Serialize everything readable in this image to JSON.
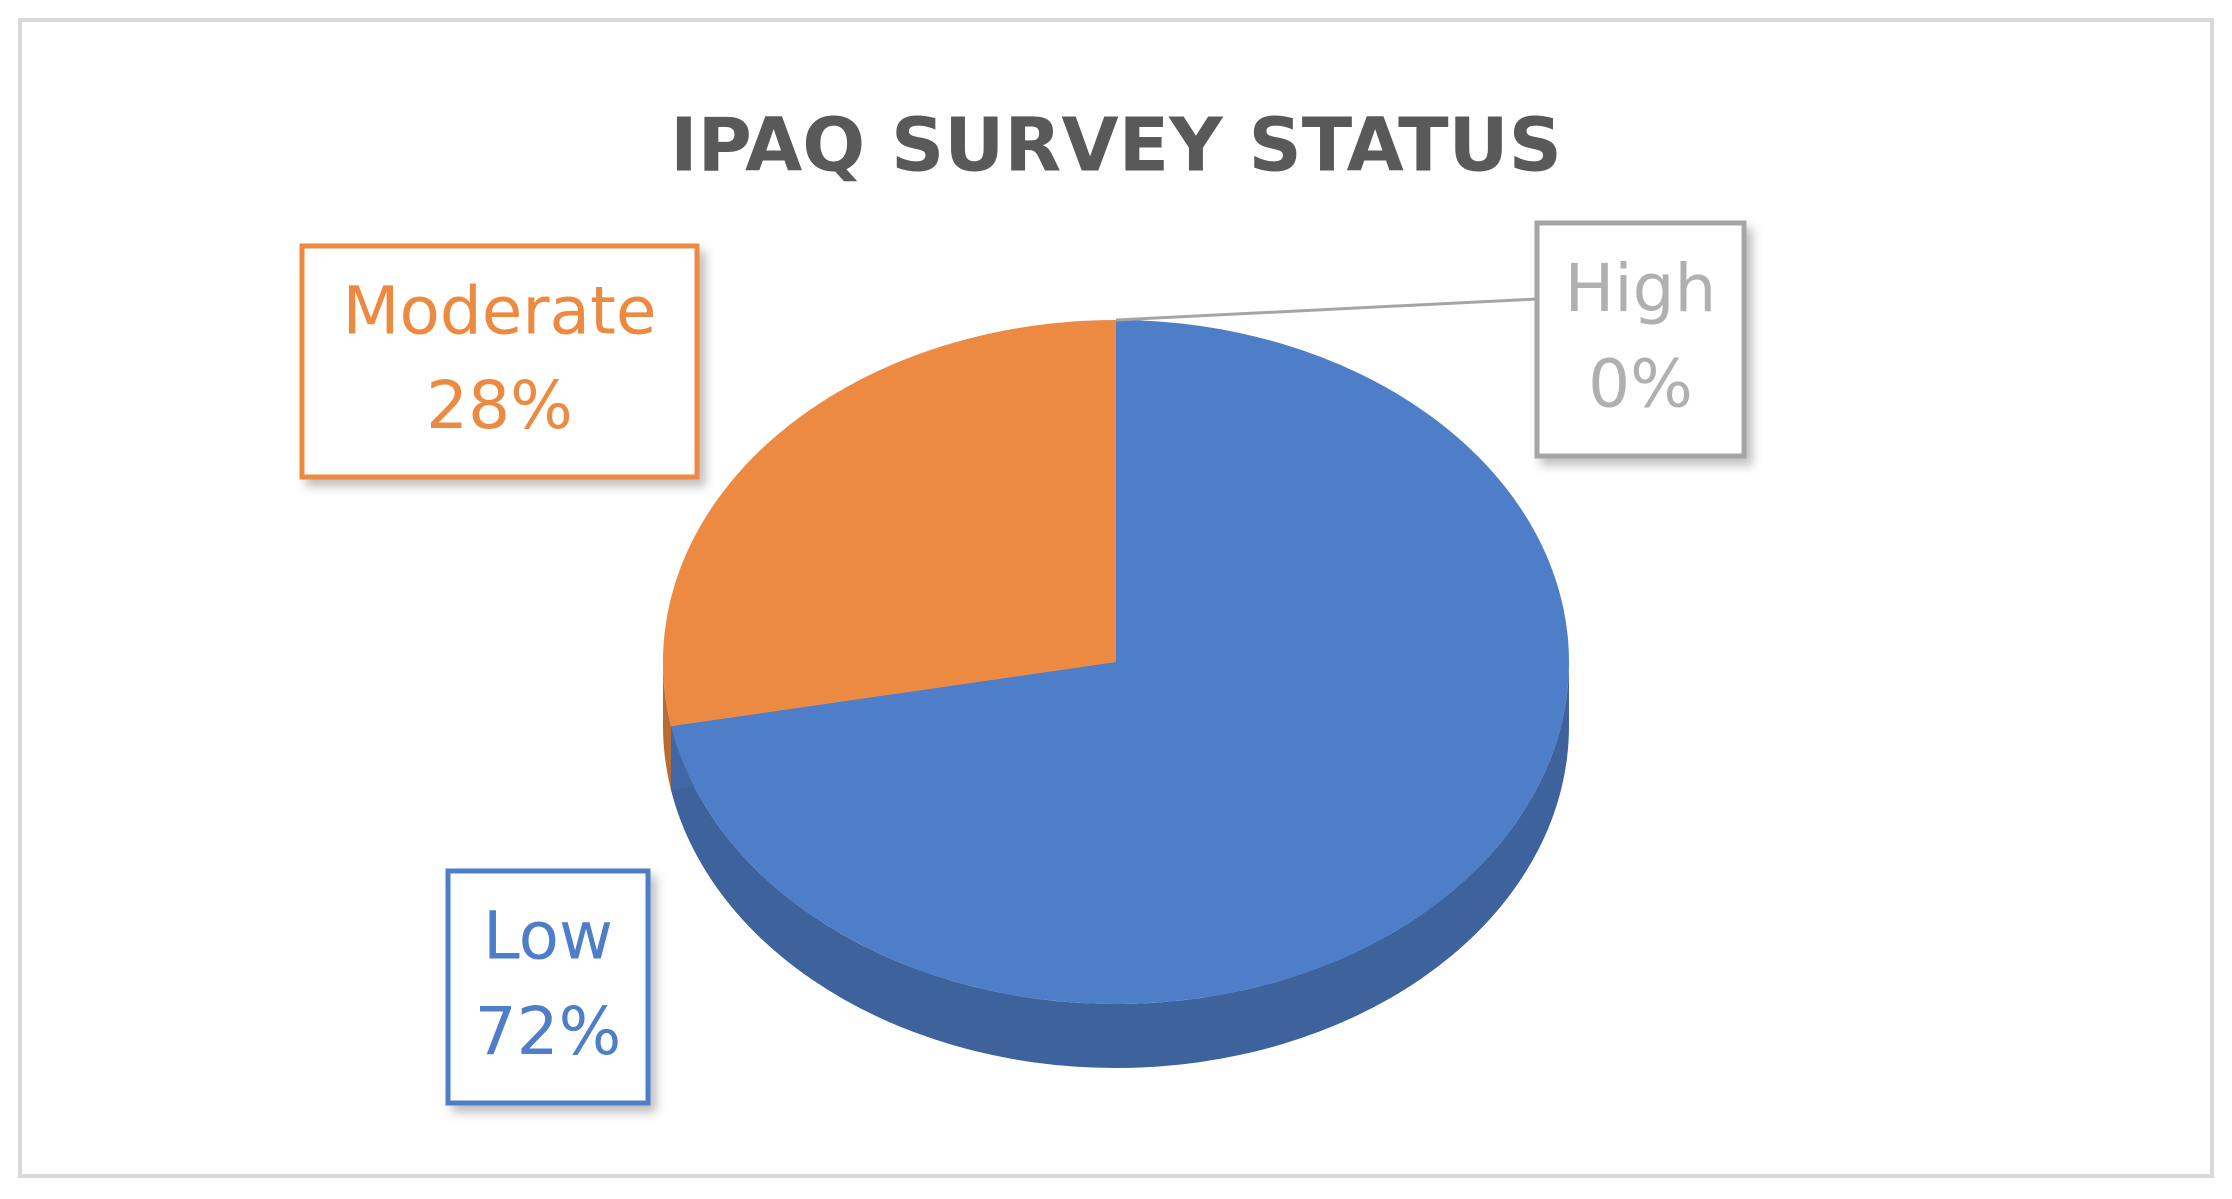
{
  "chart_data": {
    "type": "pie3d",
    "title": "IPAQ SURVEY STATUS",
    "categories": [
      "Low",
      "Moderate",
      "High"
    ],
    "values": [
      72,
      28,
      0
    ],
    "value_labels": [
      "72%",
      "28%",
      "0%"
    ],
    "colors": [
      "#4f7ec8",
      "#ed8a42",
      "#a5a5a5"
    ]
  }
}
